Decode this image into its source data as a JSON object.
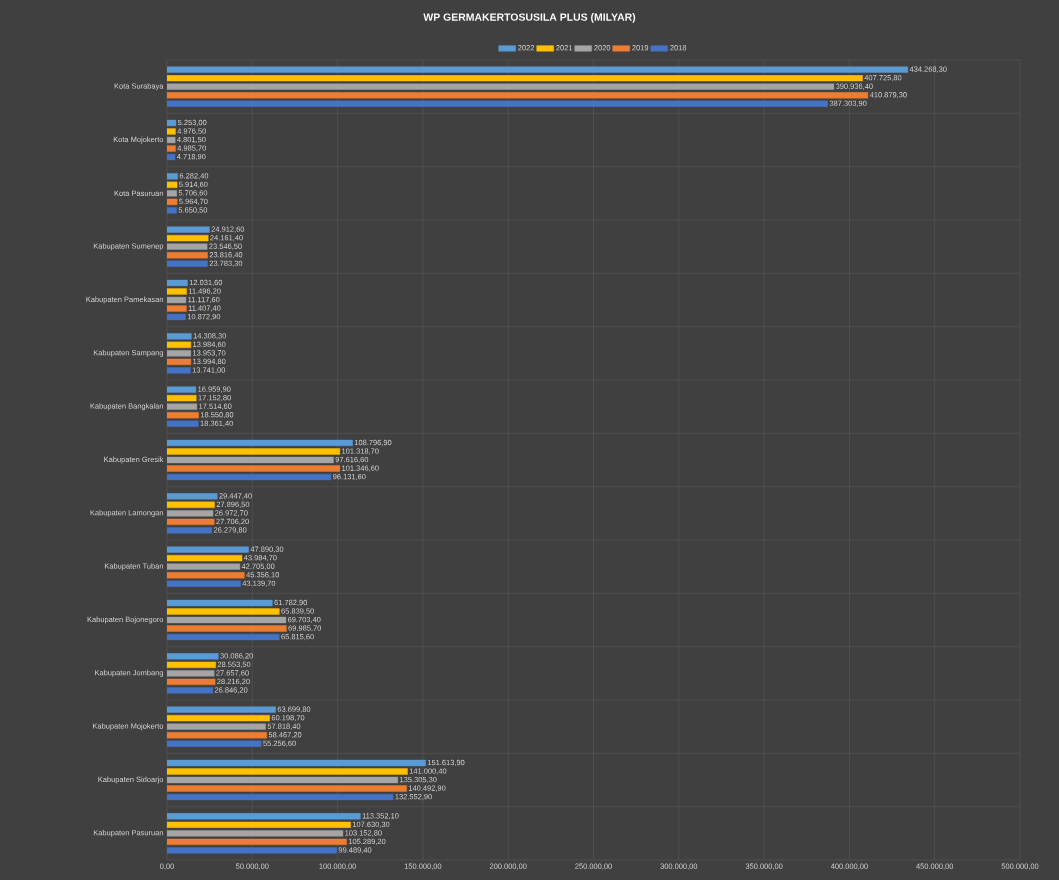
{
  "chart_data": {
    "type": "bar",
    "orientation": "horizontal",
    "title": "WP GERMAKERTOSUSILA PLUS (MILYAR)",
    "categories": [
      "Kota Surabaya",
      "Kota Mojokerto",
      "Kota Pasuruan",
      "Kabupaten Sumenep",
      "Kabupaten Pamekasan",
      "Kabupaten Sampang",
      "Kabupaten Bangkalan",
      "Kabupaten Gresik",
      "Kabupaten Lamongan",
      "Kabupaten Tuban",
      "Kabupaten Bojonegoro",
      "Kabupaten Jombang",
      "Kabupaten Mojokerto",
      "Kabupaten Sidoarjo",
      "Kabupaten Pasuruan"
    ],
    "series": [
      {
        "name": "2022",
        "color": "#5b9bd5",
        "values": [
          434268.3,
          5253.0,
          6282.4,
          24912.6,
          12031.6,
          14308.3,
          16959.9,
          108796.9,
          29447.4,
          47890.3,
          61782.9,
          30086.2,
          63699.8,
          151613.9,
          113352.1
        ],
        "value_labels": [
          "434.268,30",
          "5.253,00",
          "6.282,40",
          "24.912,60",
          "12.031,60",
          "14.308,30",
          "16.959,90",
          "108.796,90",
          "29.447,40",
          "47.890,30",
          "61.782,90",
          "30.086,20",
          "63.699,80",
          "151.613,90",
          "113.352,10"
        ]
      },
      {
        "name": "2021",
        "color": "#ffc000",
        "values": [
          407725.8,
          4976.5,
          5914.6,
          24161.4,
          11496.2,
          13984.6,
          17152.8,
          101318.7,
          27896.5,
          43984.7,
          65839.5,
          28553.5,
          60198.7,
          141000.4,
          107630.3
        ],
        "value_labels": [
          "407.725,80",
          "4.976,50",
          "5.914,60",
          "24.161,40",
          "11.496,20",
          "13.984,60",
          "17.152,80",
          "101.318,70",
          "27.896,50",
          "43.984,70",
          "65.839,50",
          "28.553,50",
          "60.198,70",
          "141.000,40",
          "107.630,30"
        ]
      },
      {
        "name": "2020",
        "color": "#a5a5a5",
        "values": [
          390936.4,
          4801.5,
          5706.6,
          23546.5,
          11117.6,
          13953.7,
          17514.6,
          97616.6,
          26972.7,
          42705.0,
          69703.4,
          27657.6,
          57818.4,
          135305.3,
          103152.8
        ],
        "value_labels": [
          "390.936,40",
          "4.801,50",
          "5.706,60",
          "23.546,50",
          "11.117,60",
          "13.953,70",
          "17.514,60",
          "97.616,60",
          "26.972,70",
          "42.705,00",
          "69.703,40",
          "27.657,60",
          "57.818,40",
          "135.305,30",
          "103.152,80"
        ]
      },
      {
        "name": "2019",
        "color": "#ed7d31",
        "values": [
          410879.3,
          4985.7,
          5964.7,
          23816.4,
          11407.4,
          13994.8,
          18550.8,
          101346.6,
          27706.2,
          45356.1,
          69985.7,
          28216.2,
          58467.2,
          140492.9,
          105289.2
        ],
        "value_labels": [
          "410.879,30",
          "4.985,70",
          "5.964,70",
          "23.816,40",
          "11.407,40",
          "13.994,80",
          "18.550,80",
          "101.346,60",
          "27.706,20",
          "45.356,10",
          "69.985,70",
          "28.216,20",
          "58.467,20",
          "140.492,90",
          "105.289,20"
        ]
      },
      {
        "name": "2018",
        "color": "#4472c4",
        "values": [
          387303.9,
          4718.9,
          5650.5,
          23783.3,
          10872.9,
          13741.0,
          18361.4,
          96131.6,
          26279.8,
          43139.7,
          65815.6,
          26846.2,
          55256.6,
          132552.9,
          99489.4
        ],
        "value_labels": [
          "387.303,90",
          "4.718,90",
          "5.650,50",
          "23.783,30",
          "10.872,90",
          "13.741,00",
          "18.361,40",
          "96.131,60",
          "26.279,80",
          "43.139,70",
          "65.815,60",
          "26.846,20",
          "55.256,60",
          "132.552,90",
          "99.489,40"
        ]
      }
    ],
    "xlim": [
      0,
      500000
    ],
    "xticks": [
      {
        "value": 0,
        "label": "0,00"
      },
      {
        "value": 50000,
        "label": "50.000,00"
      },
      {
        "value": 100000,
        "label": "100.000,00"
      },
      {
        "value": 150000,
        "label": "150.000,00"
      },
      {
        "value": 200000,
        "label": "200.000,00"
      },
      {
        "value": 250000,
        "label": "250.000,00"
      },
      {
        "value": 300000,
        "label": "300.000,00"
      },
      {
        "value": 350000,
        "label": "350.000,00"
      },
      {
        "value": 400000,
        "label": "400.000,00"
      },
      {
        "value": 450000,
        "label": "450.000,00"
      },
      {
        "value": 500000,
        "label": "500.000,00"
      }
    ],
    "grid": true,
    "legend": "top"
  }
}
